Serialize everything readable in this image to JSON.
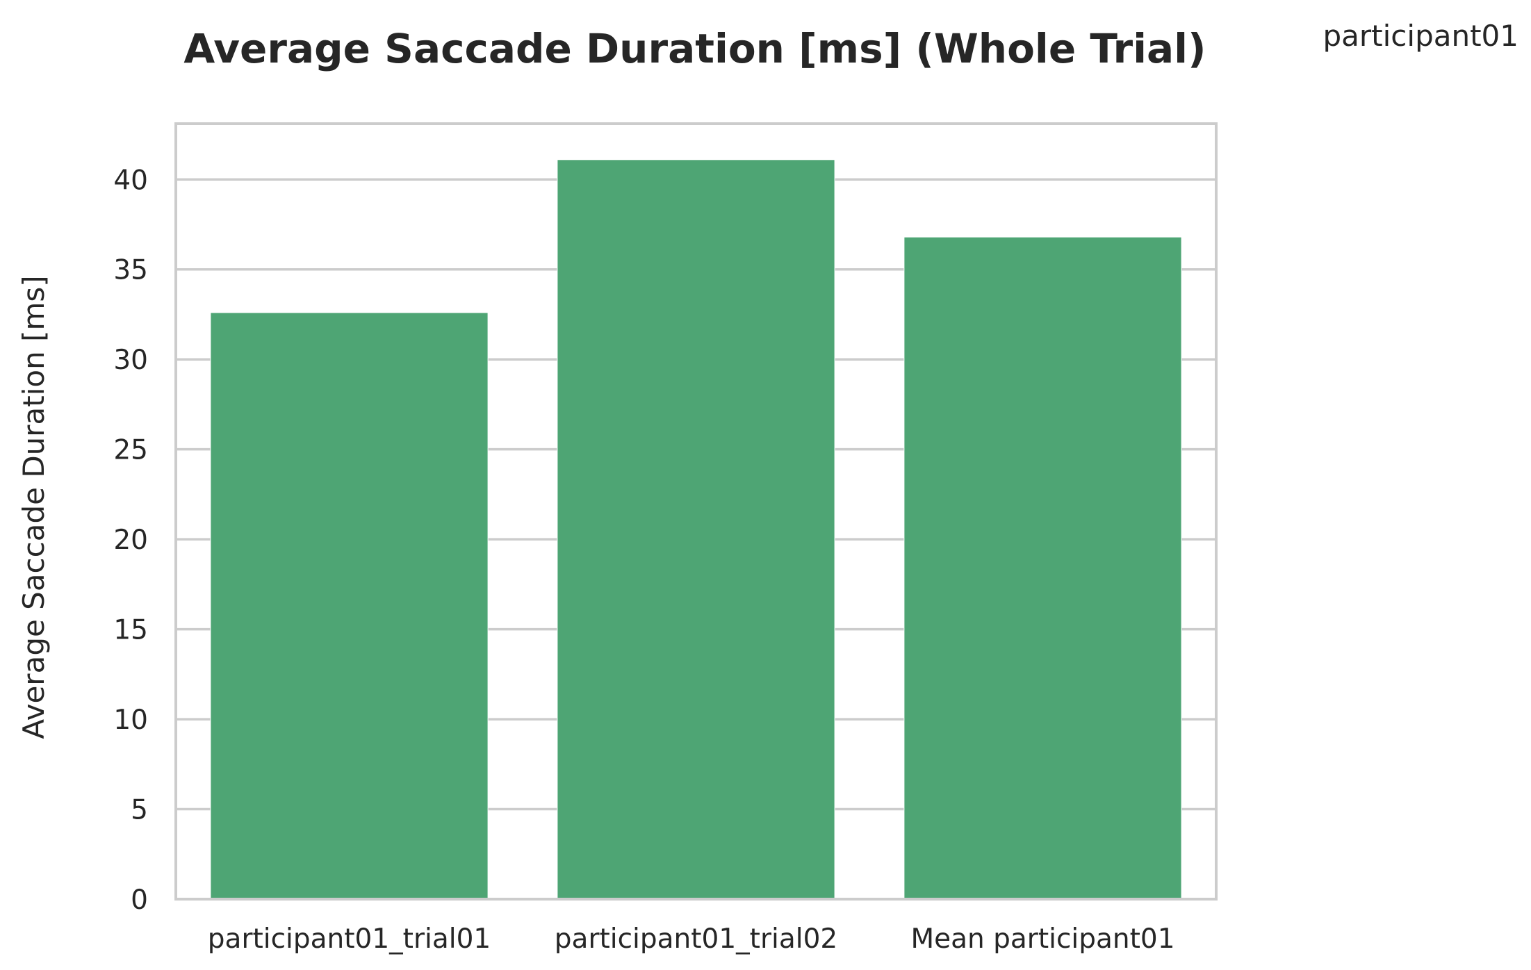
{
  "chart_data": {
    "type": "bar",
    "title": "Average Saccade Duration [ms] (Whole Trial)",
    "xlabel": "",
    "ylabel": "Average Saccade Duration [ms]",
    "categories": [
      "participant01_trial01",
      "participant01_trial02",
      "Mean participant01"
    ],
    "series": [
      {
        "name": "participant01",
        "values": [
          32.6,
          41.1,
          36.8
        ],
        "color": "#4ea574"
      }
    ],
    "ylim": [
      0,
      43.1
    ],
    "yticks": [
      0,
      5,
      10,
      15,
      20,
      25,
      30,
      35,
      40
    ],
    "grid": true,
    "legend": "top-right"
  }
}
